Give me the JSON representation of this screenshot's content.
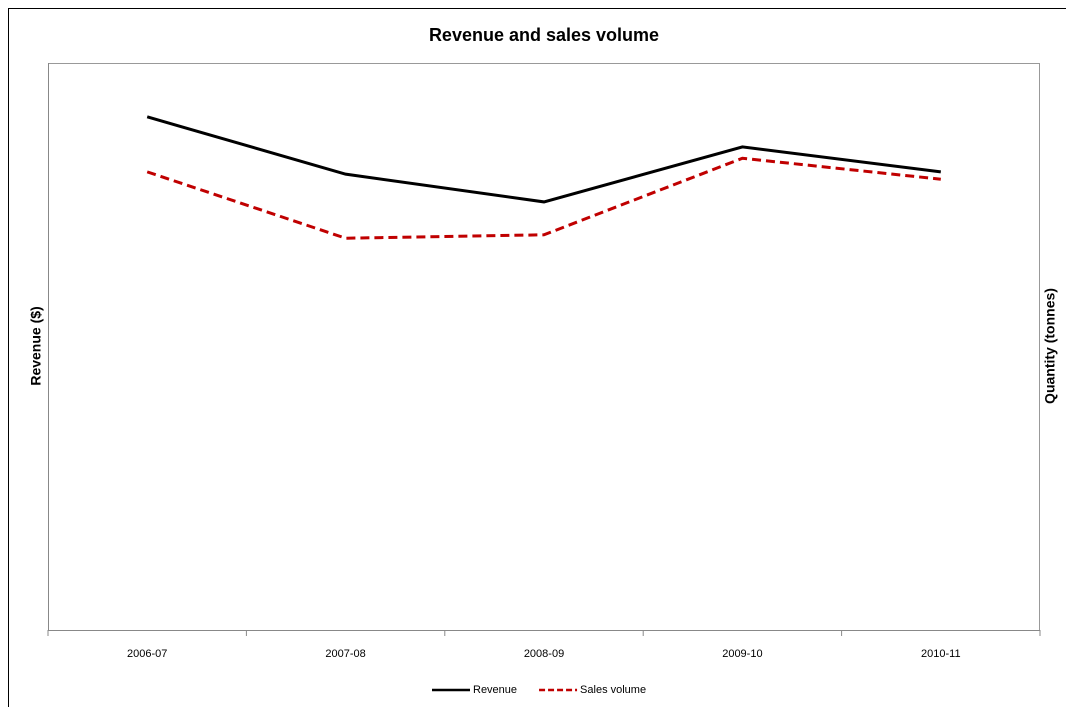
{
  "chart_data": {
    "type": "line",
    "title": "Revenue and sales volume",
    "y_label": "Revenue ($)",
    "y2_label": "Quantity (tonnes)",
    "categories": [
      "2006-07",
      "2007-08",
      "2008-09",
      "2009-10",
      "2010-11"
    ],
    "series": [
      {
        "name": "Revenue",
        "color": "#000000",
        "values": [
          90.5,
          80.4,
          75.5,
          85.2,
          80.8
        ]
      },
      {
        "name": "Sales volume",
        "color": "#c00000",
        "axis": "y2",
        "values": [
          80.8,
          69.1,
          69.7,
          83.2,
          79.5
        ]
      }
    ],
    "ylim": [
      0,
      100
    ],
    "y2lim": [
      0,
      100
    ],
    "legend": "bottom"
  }
}
